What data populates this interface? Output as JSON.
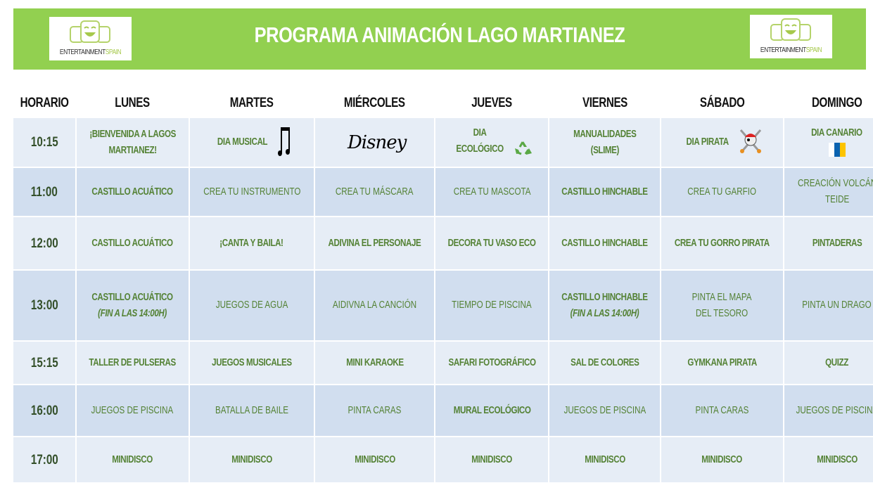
{
  "header": {
    "title": "PROGRAMA ANIMACIÓN LAGO MARTIANEZ",
    "logo_text": "ENTERTAINMENT",
    "logo_text_accent": "SPAIN",
    "background_color": "#92d050"
  },
  "table": {
    "columns": [
      "HORARIO",
      "LUNES",
      "MARTES",
      "MIÉRCOLES",
      "JUEVES",
      "VIERNES",
      "SÁBADO",
      "DOMINGO"
    ],
    "text_color": "#548235",
    "rows": [
      {
        "time": "10:15",
        "cells": [
          {
            "lines": [
              "¡BIENVENIDA A LAGOS",
              "MARTIANEZ!"
            ],
            "bold": true
          },
          {
            "lines": [
              "DIA MUSICAL"
            ],
            "bold": true,
            "icon": "music-note-icon"
          },
          {
            "lines": [],
            "bold": true,
            "icon": "disney-logo-icon",
            "logo": "Disney"
          },
          {
            "lines": [
              "DIA",
              "ECOLÓGICO"
            ],
            "bold": true,
            "icon": "recycle-icon"
          },
          {
            "lines": [
              "MANUALIDADES",
              "(SLIME)"
            ],
            "bold": true
          },
          {
            "lines": [
              "DIA PIRATA"
            ],
            "bold": true,
            "icon": "pirate-skull-icon"
          },
          {
            "lines": [
              "DIA CANARIO"
            ],
            "bold": true,
            "icon": "canary-flag-icon"
          }
        ]
      },
      {
        "time": "11:00",
        "cells": [
          {
            "lines": [
              "CASTILLO ACUÁTICO"
            ],
            "bold": true
          },
          {
            "lines": [
              "CREA TU INSTRUMENTO"
            ],
            "bold": false
          },
          {
            "lines": [
              "CREA TU MÁSCARA"
            ],
            "bold": false
          },
          {
            "lines": [
              "CREA TU MASCOTA"
            ],
            "bold": false
          },
          {
            "lines": [
              "CASTILLO HINCHABLE"
            ],
            "bold": true
          },
          {
            "lines": [
              "CREA TU GARFIO"
            ],
            "bold": false
          },
          {
            "lines": [
              "CREACIÓN VOLCÁN",
              "TEIDE"
            ],
            "bold": false
          }
        ]
      },
      {
        "time": "12:00",
        "cells": [
          {
            "lines": [
              "CASTILLO ACUÁTICO"
            ],
            "bold": true
          },
          {
            "lines": [
              "¡CANTA Y BAILA!"
            ],
            "bold": true
          },
          {
            "lines": [
              "ADIVINA EL PERSONAJE"
            ],
            "bold": true
          },
          {
            "lines": [
              "DECORA TU VASO ECO"
            ],
            "bold": true
          },
          {
            "lines": [
              "CASTILLO HINCHABLE"
            ],
            "bold": true
          },
          {
            "lines": [
              "CREA TU GORRO PIRATA"
            ],
            "bold": true
          },
          {
            "lines": [
              "PINTADERAS"
            ],
            "bold": true
          }
        ]
      },
      {
        "time": "13:00",
        "cells": [
          {
            "lines": [
              "CASTILLO ACUÁTICO"
            ],
            "bold": true,
            "note": "(FIN A LAS 14:00H)"
          },
          {
            "lines": [
              "JUEGOS DE AGUA"
            ],
            "bold": false
          },
          {
            "lines": [
              "AIDIVNA LA CANCIÓN"
            ],
            "bold": false
          },
          {
            "lines": [
              "TIEMPO DE PISCINA"
            ],
            "bold": false
          },
          {
            "lines": [
              "CASTILLO HINCHABLE"
            ],
            "bold": true,
            "note": "(FIN A LAS 14:00H)"
          },
          {
            "lines": [
              "PINTA EL MAPA",
              "DEL TESORO"
            ],
            "bold": false
          },
          {
            "lines": [
              "PINTA UN DRAGO"
            ],
            "bold": false
          }
        ]
      },
      {
        "time": "15:15",
        "cells": [
          {
            "lines": [
              "TALLER DE PULSERAS"
            ],
            "bold": true
          },
          {
            "lines": [
              "JUEGOS MUSICALES"
            ],
            "bold": true
          },
          {
            "lines": [
              "MINI KARAOKE"
            ],
            "bold": true
          },
          {
            "lines": [
              "SAFARI FOTOGRÁFICO"
            ],
            "bold": true
          },
          {
            "lines": [
              "SAL DE COLORES"
            ],
            "bold": true
          },
          {
            "lines": [
              "GYMKANA PIRATA"
            ],
            "bold": true
          },
          {
            "lines": [
              "QUIZZ"
            ],
            "bold": true
          }
        ]
      },
      {
        "time": "16:00",
        "cells": [
          {
            "lines": [
              "JUEGOS DE PISCINA"
            ],
            "bold": false
          },
          {
            "lines": [
              "BATALLA DE BAILE"
            ],
            "bold": false
          },
          {
            "lines": [
              "PINTA CARAS"
            ],
            "bold": false
          },
          {
            "lines": [
              "MURAL ECOLÓGICO"
            ],
            "bold": true
          },
          {
            "lines": [
              "JUEGOS DE PISCINA"
            ],
            "bold": false
          },
          {
            "lines": [
              "PINTA CARAS"
            ],
            "bold": false
          },
          {
            "lines": [
              "JUEGOS DE PISCINA"
            ],
            "bold": false
          }
        ]
      },
      {
        "time": "17:00",
        "cells": [
          {
            "lines": [
              "MINIDISCO"
            ],
            "bold": true
          },
          {
            "lines": [
              "MINIDISCO"
            ],
            "bold": true
          },
          {
            "lines": [
              "MINIDISCO"
            ],
            "bold": true
          },
          {
            "lines": [
              "MINIDISCO"
            ],
            "bold": true
          },
          {
            "lines": [
              "MINIDISCO"
            ],
            "bold": true
          },
          {
            "lines": [
              "MINIDISCO"
            ],
            "bold": true
          },
          {
            "lines": [
              "MINIDISCO"
            ],
            "bold": true
          }
        ]
      }
    ]
  }
}
